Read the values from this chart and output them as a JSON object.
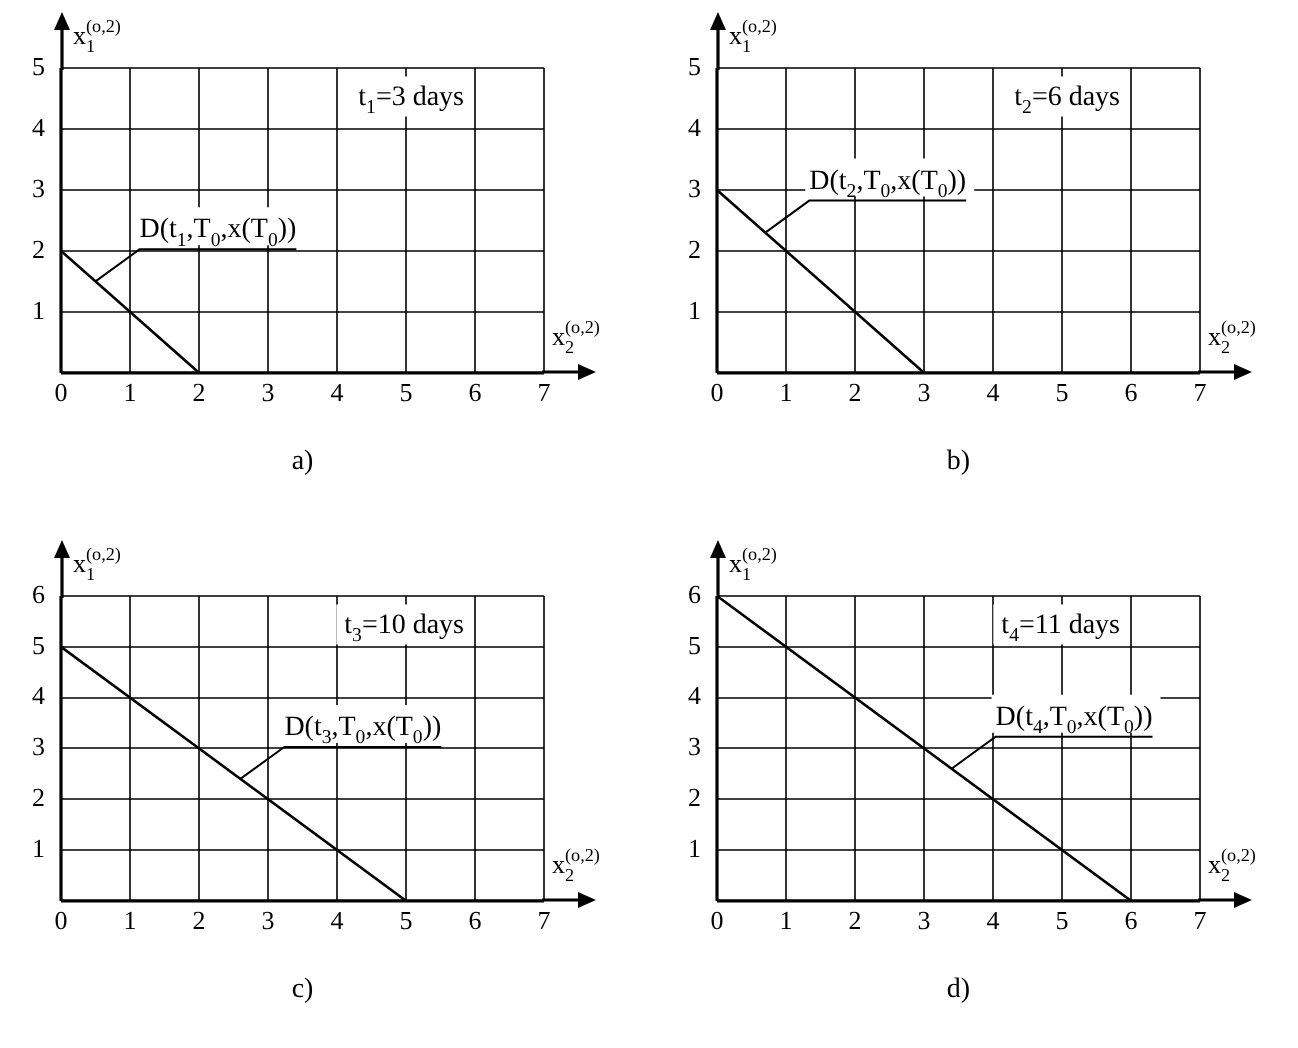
{
  "chart_data": [
    {
      "type": "line",
      "subtitle": "a)",
      "xlabel": "x$_{2}$$^{(o,2)}$",
      "ylabel": "x$_{1}$$^{(o,2)}$",
      "series": [
        {
          "color": "#000000",
          "x": [
            0,
            2
          ],
          "values": [
            2,
            0
          ]
        }
      ],
      "xlim": [
        0,
        7
      ],
      "ylim": [
        0,
        5
      ],
      "xticks": [
        0,
        1,
        2,
        3,
        4,
        5,
        6,
        7
      ],
      "yticks": [
        1,
        2,
        3,
        4,
        5
      ],
      "grid": true,
      "marker": "none",
      "legend": false,
      "annotations": [
        "t$_{1}$=3 days",
        {
          "text": "D(t$_{1}$,T$_{0}$,x(T$_{0}$))",
          "x": 0.5,
          "y": 1.5
        }
      ]
    },
    {
      "type": "line",
      "subtitle": "b)",
      "xlabel": "x$_{2}$$^{(o,2)}$",
      "ylabel": "x$_{1}$$^{(o,2)}$",
      "series": [
        {
          "color": "#000000",
          "x": [
            0,
            3
          ],
          "values": [
            3,
            0
          ]
        }
      ],
      "xlim": [
        0,
        7
      ],
      "ylim": [
        0,
        5
      ],
      "xticks": [
        0,
        1,
        2,
        3,
        4,
        5,
        6,
        7
      ],
      "yticks": [
        1,
        2,
        3,
        4,
        5
      ],
      "grid": true,
      "marker": "none",
      "legend": false,
      "annotations": [
        "t$_{2}$=6 days",
        {
          "text": "D(t$_{2}$,T$_{0}$,x(T$_{0}$))",
          "x": 0.7,
          "y": 2.3
        }
      ]
    },
    {
      "type": "line",
      "subtitle": "c)",
      "xlabel": "x$_{2}$$^{(o,2)}$",
      "ylabel": "x$_{1}$$^{(o,2)}$",
      "series": [
        {
          "color": "#000000",
          "x": [
            0,
            5
          ],
          "values": [
            5,
            0
          ]
        }
      ],
      "xlim": [
        0,
        7
      ],
      "ylim": [
        0,
        6
      ],
      "xticks": [
        0,
        1,
        2,
        3,
        4,
        5,
        6,
        7
      ],
      "yticks": [
        1,
        2,
        3,
        4,
        5,
        6
      ],
      "grid": true,
      "marker": "none",
      "legend": false,
      "annotations": [
        "t$_{3}$=10 days",
        {
          "text": "D(t$_{3}$,T$_{0}$,x(T$_{0}$))",
          "x": 2.6,
          "y": 2.4
        }
      ]
    },
    {
      "type": "line",
      "subtitle": "d)",
      "xlabel": "x$_{2}$$^{(o,2)}$",
      "ylabel": "x$_{1}$$^{(o,2)}$",
      "series": [
        {
          "color": "#000000",
          "x": [
            0,
            6
          ],
          "values": [
            6,
            0
          ]
        }
      ],
      "xlim": [
        0,
        7
      ],
      "ylim": [
        0,
        6
      ],
      "xticks": [
        0,
        1,
        2,
        3,
        4,
        5,
        6,
        7
      ],
      "yticks": [
        1,
        2,
        3,
        4,
        5,
        6
      ],
      "grid": true,
      "marker": "none",
      "legend": false,
      "annotations": [
        "t$_{4}$=11 days",
        {
          "text": "D(t$_{4}$,T$_{0}$,x(T$_{0}$))",
          "x": 3.4,
          "y": 2.6
        }
      ]
    }
  ]
}
